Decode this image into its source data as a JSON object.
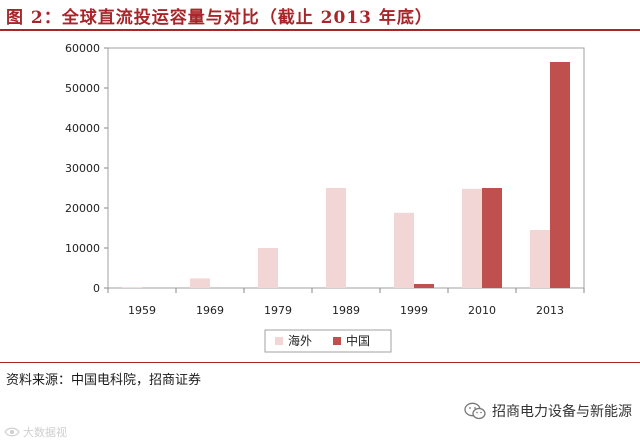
{
  "title": "图 2：全球直流投运容量与对比（截止 2013 年底）",
  "source": "资料来源：中国电科院，招商证券",
  "brand": "招商电力设备与新能源",
  "watermark": "大数据视",
  "colors": {
    "title": "#a8262a",
    "overseas": "#f2d6d6",
    "china": "#c0504d"
  },
  "chart_data": {
    "type": "bar",
    "title": "",
    "xlabel": "",
    "ylabel": "",
    "ylim": [
      0,
      60000
    ],
    "yticks": [
      0,
      10000,
      20000,
      30000,
      40000,
      50000,
      60000
    ],
    "grid": false,
    "legend_position": "bottom",
    "categories": [
      "1959",
      "1969",
      "1979",
      "1989",
      "1999",
      "2010",
      "2013"
    ],
    "series": [
      {
        "name": "海外",
        "color": "#f2d6d6",
        "values": [
          200,
          2400,
          10000,
          25000,
          18800,
          24800,
          14500
        ]
      },
      {
        "name": "中国",
        "color": "#c0504d",
        "values": [
          0,
          0,
          0,
          0,
          1000,
          25000,
          56500
        ]
      }
    ]
  }
}
